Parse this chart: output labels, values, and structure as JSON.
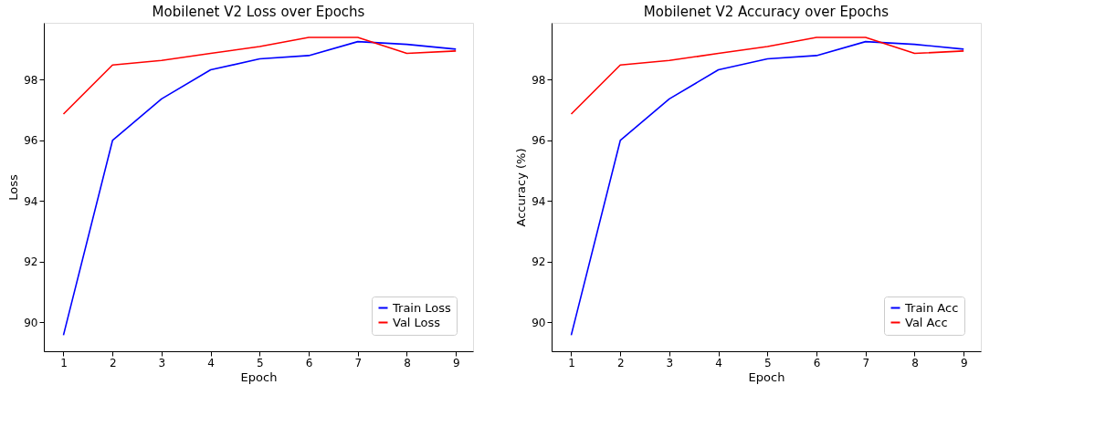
{
  "chart_data": [
    {
      "type": "line",
      "title": "Mobilenet V2 Loss over Epochs",
      "xlabel": "Epoch",
      "ylabel": "Loss",
      "x": [
        1,
        2,
        3,
        4,
        5,
        6,
        7,
        8,
        9
      ],
      "series": [
        {
          "name": "Train Loss",
          "color": "#0000ff",
          "values": [
            89.58,
            96.0,
            97.37,
            98.33,
            98.69,
            98.8,
            99.26,
            99.17,
            99.01
          ]
        },
        {
          "name": "Val Loss",
          "color": "#ff0000",
          "values": [
            96.87,
            98.49,
            98.64,
            98.87,
            99.1,
            99.4,
            99.4,
            98.87,
            98.95
          ]
        }
      ],
      "xlim": [
        0.6,
        9.35
      ],
      "ylim": [
        89.05,
        99.88
      ],
      "xticks": [
        1,
        2,
        3,
        4,
        5,
        6,
        7,
        8,
        9
      ],
      "yticks": [
        90,
        92,
        94,
        96,
        98
      ],
      "grid": false,
      "legend": "bottom right",
      "marker": "none",
      "line_style": "solid"
    },
    {
      "type": "line",
      "title": "Mobilenet V2 Accuracy over Epochs",
      "xlabel": "Epoch",
      "ylabel": "Accuracy (%)",
      "x": [
        1,
        2,
        3,
        4,
        5,
        6,
        7,
        8,
        9
      ],
      "series": [
        {
          "name": "Train Acc",
          "color": "#0000ff",
          "values": [
            89.58,
            96.0,
            97.37,
            98.33,
            98.69,
            98.8,
            99.26,
            99.17,
            99.01
          ]
        },
        {
          "name": "Val Acc",
          "color": "#ff0000",
          "values": [
            96.87,
            98.49,
            98.64,
            98.87,
            99.1,
            99.4,
            99.4,
            98.87,
            98.95
          ]
        }
      ],
      "xlim": [
        0.6,
        9.35
      ],
      "ylim": [
        89.05,
        99.88
      ],
      "xticks": [
        1,
        2,
        3,
        4,
        5,
        6,
        7,
        8,
        9
      ],
      "yticks": [
        90,
        92,
        94,
        96,
        98
      ],
      "grid": false,
      "legend": "bottom right",
      "marker": "none",
      "line_style": "solid"
    }
  ]
}
